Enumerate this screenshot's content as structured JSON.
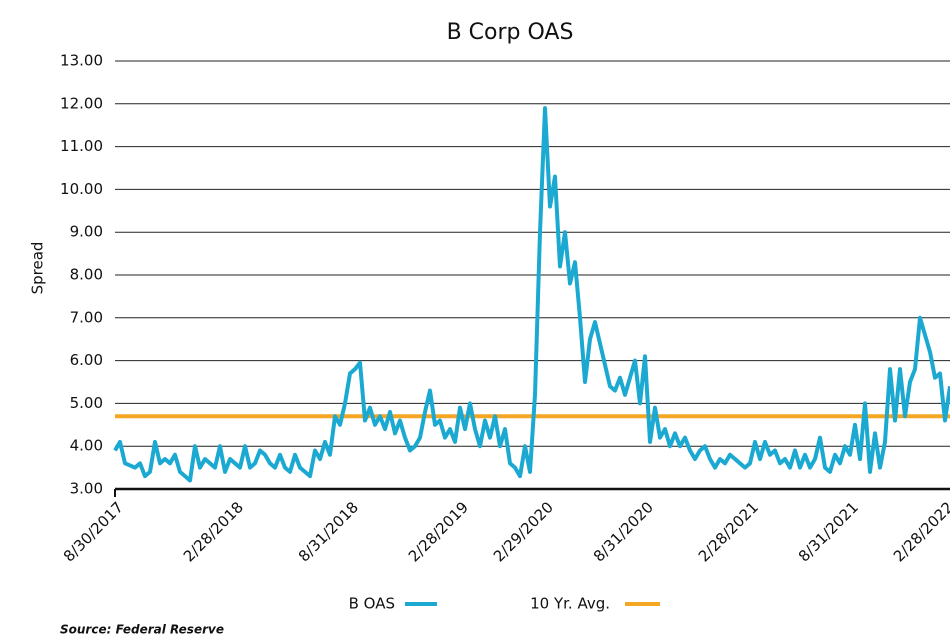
{
  "chart_data": {
    "type": "line",
    "title": "B Corp OAS",
    "y_label": "Spread",
    "source": "Source: Federal Reserve",
    "categories": [
      "8/30/2017",
      null,
      null,
      null,
      null,
      null,
      null,
      null,
      null,
      null,
      null,
      null,
      null,
      null,
      null,
      null,
      null,
      null,
      null,
      null,
      null,
      null,
      null,
      null,
      "2/28/2018",
      null,
      null,
      null,
      null,
      null,
      null,
      null,
      null,
      null,
      null,
      null,
      null,
      null,
      null,
      null,
      null,
      null,
      null,
      null,
      null,
      null,
      null,
      "8/31/2018",
      null,
      null,
      null,
      null,
      null,
      null,
      null,
      null,
      null,
      null,
      null,
      null,
      null,
      null,
      null,
      null,
      null,
      null,
      null,
      null,
      null,
      "2/28/2019",
      null,
      null,
      null,
      null,
      null,
      null,
      null,
      null,
      null,
      null,
      null,
      null,
      null,
      null,
      null,
      null,
      "2/29/2020",
      null,
      null,
      null,
      null,
      null,
      null,
      null,
      null,
      null,
      null,
      null,
      null,
      null,
      null,
      null,
      null,
      null,
      null,
      null,
      "8/31/2020",
      null,
      null,
      null,
      null,
      null,
      null,
      null,
      null,
      null,
      null,
      null,
      null,
      null,
      null,
      null,
      null,
      null,
      null,
      null,
      null,
      "2/28/2021",
      null,
      null,
      null,
      null,
      null,
      null,
      null,
      null,
      null,
      null,
      null,
      null,
      null,
      null,
      null,
      null,
      null,
      null,
      null,
      "8/31/2021",
      null,
      null,
      null,
      null,
      null,
      null,
      null,
      null,
      null,
      null,
      null,
      null,
      null,
      null,
      null,
      null,
      null,
      null,
      "2/28/2022",
      null
    ],
    "series": [
      {
        "name": "B OAS",
        "color": "#1ba9d2",
        "values": [
          3.9,
          4.1,
          3.6,
          3.55,
          3.5,
          3.6,
          3.3,
          3.4,
          4.1,
          3.6,
          3.7,
          3.6,
          3.8,
          3.4,
          3.3,
          3.2,
          4.0,
          3.5,
          3.7,
          3.6,
          3.5,
          4.0,
          3.4,
          3.7,
          3.6,
          3.5,
          4.0,
          3.5,
          3.6,
          3.9,
          3.8,
          3.6,
          3.5,
          3.8,
          3.5,
          3.4,
          3.8,
          3.5,
          3.4,
          3.3,
          3.9,
          3.7,
          4.1,
          3.8,
          4.7,
          4.5,
          5.0,
          5.7,
          5.8,
          5.95,
          4.6,
          4.9,
          4.5,
          4.7,
          4.4,
          4.8,
          4.3,
          4.6,
          4.2,
          3.9,
          4.0,
          4.2,
          4.8,
          5.3,
          4.5,
          4.6,
          4.2,
          4.4,
          4.1,
          4.9,
          4.4,
          5.0,
          4.4,
          4.0,
          4.6,
          4.2,
          4.7,
          4.0,
          4.4,
          3.6,
          3.5,
          3.3,
          4.0,
          3.4,
          5.2,
          9.0,
          11.9,
          9.6,
          10.3,
          8.2,
          9.0,
          7.8,
          8.3,
          7.0,
          5.5,
          6.5,
          6.9,
          6.4,
          5.9,
          5.4,
          5.3,
          5.6,
          5.2,
          5.6,
          6.0,
          5.0,
          6.1,
          4.1,
          4.9,
          4.2,
          4.4,
          4.0,
          4.3,
          4.0,
          4.2,
          3.9,
          3.7,
          3.9,
          4.0,
          3.7,
          3.5,
          3.7,
          3.6,
          3.8,
          3.7,
          3.6,
          3.5,
          3.6,
          4.1,
          3.7,
          4.1,
          3.8,
          3.9,
          3.6,
          3.7,
          3.5,
          3.9,
          3.5,
          3.8,
          3.5,
          3.7,
          4.2,
          3.5,
          3.4,
          3.8,
          3.6,
          4.0,
          3.8,
          4.5,
          3.7,
          5.0,
          3.4,
          4.3,
          3.5,
          4.1,
          5.8,
          4.6,
          5.8,
          4.7,
          5.5,
          5.8,
          7.0,
          6.6,
          6.2,
          5.6,
          5.7,
          4.6,
          5.4
        ]
      }
    ],
    "reference_lines": [
      {
        "name": "10 Yr. Avg.",
        "color": "#f5a623",
        "value": 4.7
      }
    ],
    "ylim": [
      3,
      13
    ],
    "yticks": [
      {
        "value": 3,
        "label": "3.00"
      },
      {
        "value": 4,
        "label": "4.00"
      },
      {
        "value": 5,
        "label": "5.00"
      },
      {
        "value": 6,
        "label": "6.00"
      },
      {
        "value": 7,
        "label": "7.00"
      },
      {
        "value": 8,
        "label": "8.00"
      },
      {
        "value": 9,
        "label": "9.00"
      },
      {
        "value": 10,
        "label": "10.00"
      },
      {
        "value": 11,
        "label": "11.00"
      },
      {
        "value": 12,
        "label": "12.00"
      },
      {
        "value": 13,
        "label": "13.00"
      }
    ],
    "grid": true
  }
}
